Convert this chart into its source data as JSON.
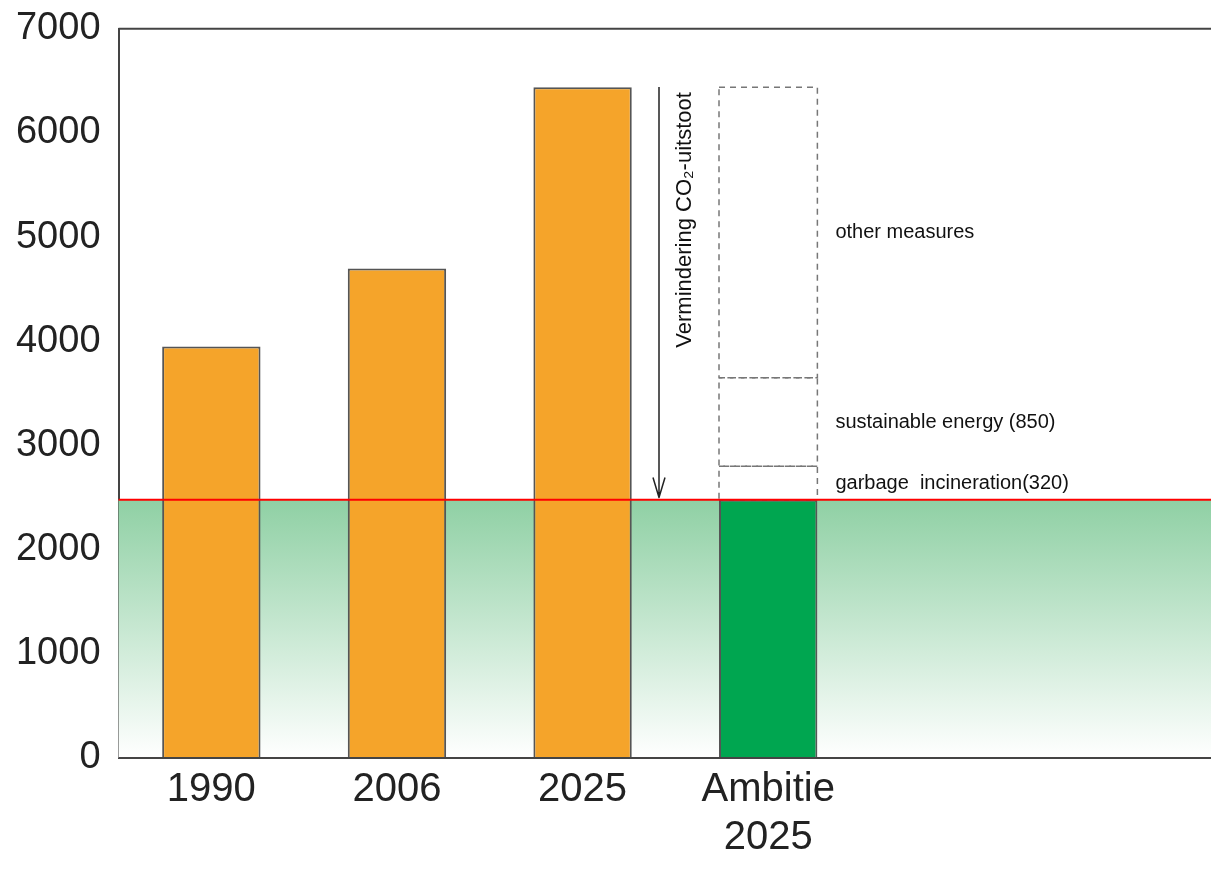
{
  "chart_data": {
    "type": "bar",
    "stacked": true,
    "categories": [
      "1990",
      "2006",
      "2025",
      "Ambitie 2025"
    ],
    "series": [
      {
        "color": "#f5a42a",
        "values": [
          3950,
          4700,
          6440,
          null
        ]
      },
      {
        "color": "#00a650",
        "values": [
          null,
          null,
          null,
          2480
        ]
      },
      {
        "color": "#777777",
        "line_style": "dashed",
        "values": [
          null,
          null,
          null,
          320
        ]
      },
      {
        "color": "#777777",
        "line_style": "dashed",
        "values": [
          null,
          null,
          null,
          850
        ]
      },
      {
        "color": "#777777",
        "line_style": "dashed",
        "values": [
          null,
          null,
          null,
          2790
        ]
      }
    ],
    "ylim": [
      0,
      7000
    ],
    "yticks": [
      0,
      1000,
      2000,
      3000,
      4000,
      5000,
      6000,
      7000
    ],
    "grid": false,
    "legend": false,
    "ref_lines": [
      {
        "axis": "y",
        "value": 2480,
        "color": "#ff0000"
      }
    ],
    "bands": [
      {
        "axis": "y",
        "from": 0,
        "to": 2480,
        "color": "#8fd0a4"
      }
    ],
    "annotations": [
      "Vermindering CO₂-uitstoot",
      "other measures",
      "sustainable energy (850)",
      "garbage  incineration(320)"
    ]
  }
}
